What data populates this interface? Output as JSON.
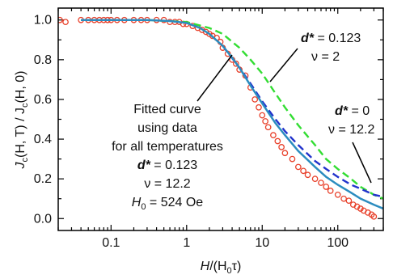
{
  "chart_data": {
    "type": "line",
    "xlabel_parts": [
      "H",
      "/(H",
      "0",
      "τ)"
    ],
    "ylabel_parts": [
      "J",
      "c",
      "(H, T) / J",
      "c",
      "(H, 0)"
    ],
    "xscale": "log",
    "xlim": [
      0.02,
      400
    ],
    "ylim": [
      -0.06,
      1.06
    ],
    "xticks": [
      0.1,
      1,
      10,
      100
    ],
    "xtick_labels": [
      "0.1",
      "1",
      "10",
      "100"
    ],
    "yticks": [
      0.0,
      0.2,
      0.4,
      0.6,
      0.8,
      1.0
    ],
    "ytick_labels": [
      "0.0",
      "0.2",
      "0.4",
      "0.6",
      "0.8",
      "1.0"
    ],
    "grid": false,
    "legend": "none",
    "series": [
      {
        "style": "markers",
        "color": "#e8402a",
        "x": [
          0.021,
          0.025,
          0.04,
          0.05,
          0.06,
          0.07,
          0.08,
          0.09,
          0.1,
          0.12,
          0.15,
          0.2,
          0.25,
          0.3,
          0.4,
          0.5,
          0.6,
          0.7,
          0.8,
          0.9,
          1.0,
          1.2,
          1.4,
          1.6,
          1.8,
          2.0,
          2.2,
          2.5,
          2.8,
          3.0,
          3.5,
          4,
          4.5,
          5,
          6,
          7,
          8,
          9,
          10,
          11,
          12,
          14,
          16,
          18,
          20,
          25,
          30,
          35,
          40,
          50,
          60,
          70,
          80,
          100,
          120,
          140,
          160,
          180,
          200,
          220,
          250,
          280,
          300
        ],
        "values": [
          1.0,
          0.99,
          1.0,
          1.0,
          1.0,
          1.0,
          1.0,
          1.0,
          1.0,
          1.0,
          1.0,
          1.0,
          1.0,
          1.0,
          1.0,
          1.0,
          0.99,
          0.99,
          0.99,
          0.98,
          0.98,
          0.97,
          0.96,
          0.95,
          0.94,
          0.93,
          0.92,
          0.91,
          0.89,
          0.86,
          0.83,
          0.8,
          0.78,
          0.75,
          0.72,
          0.66,
          0.6,
          0.56,
          0.52,
          0.49,
          0.46,
          0.42,
          0.39,
          0.36,
          0.33,
          0.3,
          0.26,
          0.24,
          0.22,
          0.2,
          0.18,
          0.16,
          0.14,
          0.12,
          0.1,
          0.09,
          0.07,
          0.06,
          0.05,
          0.04,
          0.03,
          0.02,
          0.01
        ]
      },
      {
        "style": "solid",
        "color": "#2b8cbf",
        "x": [
          0.04,
          0.1,
          0.3,
          0.6,
          1.0,
          1.5,
          2.0,
          3.0,
          4.0,
          5.0,
          7.0,
          10,
          15,
          20,
          30,
          50,
          70,
          100,
          150,
          200,
          300,
          400
        ],
        "values": [
          1.0,
          1.0,
          1.0,
          0.995,
          0.985,
          0.96,
          0.93,
          0.87,
          0.81,
          0.76,
          0.67,
          0.58,
          0.48,
          0.42,
          0.34,
          0.26,
          0.21,
          0.17,
          0.13,
          0.1,
          0.07,
          0.05
        ]
      },
      {
        "style": "dashed",
        "color": "#33dd33",
        "x": [
          0.04,
          0.3,
          1.0,
          2.0,
          3.0,
          4.0,
          5.0,
          7.0,
          10,
          15,
          20,
          30,
          50,
          70,
          100,
          150,
          200,
          300,
          400
        ],
        "values": [
          1.0,
          1.0,
          0.99,
          0.96,
          0.93,
          0.89,
          0.86,
          0.8,
          0.73,
          0.63,
          0.56,
          0.47,
          0.37,
          0.3,
          0.25,
          0.2,
          0.16,
          0.12,
          0.1
        ]
      },
      {
        "style": "dashed",
        "color": "#2233cc",
        "x": [
          3.0,
          5.0,
          7.0,
          10,
          15,
          20,
          30,
          50,
          70,
          100,
          150,
          200,
          300,
          400
        ],
        "values": [
          0.87,
          0.76,
          0.68,
          0.59,
          0.5,
          0.44,
          0.37,
          0.29,
          0.25,
          0.21,
          0.17,
          0.15,
          0.12,
          0.11
        ]
      }
    ],
    "annotations": {
      "green": {
        "d_label": "d*",
        "d_value": " = 0.123",
        "nu_label": "ν = 2"
      },
      "blue": {
        "d_label": "d*",
        "d_value": " = 0",
        "nu_label": "ν = 12.2"
      },
      "fit": {
        "lines": [
          "Fitted curve",
          "using data",
          "for all temperatures"
        ],
        "d_label": "d*",
        "d_value": " = 0.123",
        "nu_label": "ν = 12.2",
        "h0_label": "H",
        "h0_sub": "0",
        "h0_value": " = 524 Oe"
      }
    }
  }
}
